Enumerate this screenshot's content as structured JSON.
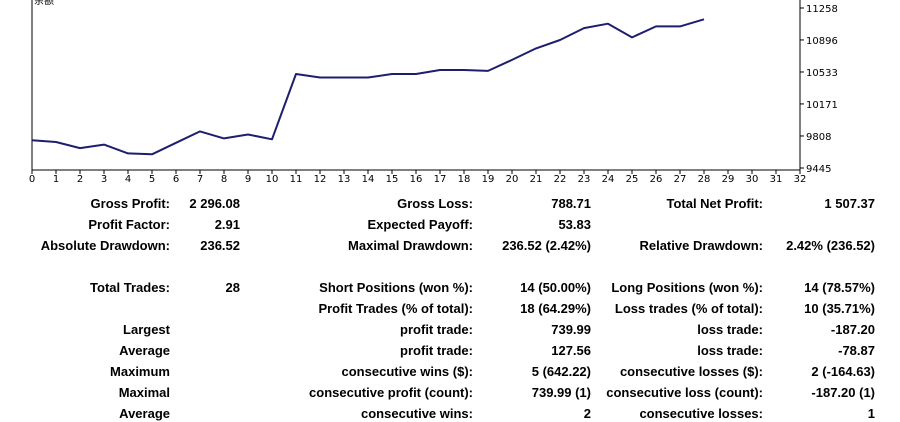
{
  "chart_data": {
    "type": "line",
    "title": "",
    "xlabel": "",
    "ylabel": "",
    "corner_label": "余额",
    "x_ticks": [
      "0",
      "1",
      "2",
      "3",
      "4",
      "5",
      "6",
      "7",
      "8",
      "9",
      "10",
      "11",
      "12",
      "13",
      "14",
      "15",
      "16",
      "17",
      "18",
      "19",
      "20",
      "21",
      "22",
      "23",
      "24",
      "25",
      "26",
      "27",
      "28",
      "29",
      "30",
      "31",
      "32"
    ],
    "y_ticks": [
      "11258",
      "10896",
      "10533",
      "10171",
      "9808",
      "9445"
    ],
    "xlim": [
      0,
      32
    ],
    "ylim": [
      9445,
      11258
    ],
    "grid": false,
    "series": [
      {
        "color": "#1e1e6e",
        "x": [
          0,
          1,
          2,
          3,
          4,
          5,
          6,
          7,
          8,
          9,
          10,
          11,
          12,
          13,
          14,
          15,
          16,
          17,
          18,
          19,
          20,
          21,
          22,
          23,
          24,
          25,
          26,
          27,
          28
        ],
        "y": [
          9760,
          9740,
          9670,
          9710,
          9610,
          9600,
          9730,
          9860,
          9780,
          9825,
          9770,
          10510,
          10470,
          10470,
          10470,
          10510,
          10510,
          10555,
          10555,
          10545,
          10670,
          10800,
          10895,
          11030,
          11080,
          10925,
          11050,
          11050,
          11130
        ]
      }
    ]
  },
  "stats": {
    "gross_profit_label": "Gross Profit:",
    "gross_profit_value": "2 296.08",
    "gross_loss_label": "Gross Loss:",
    "gross_loss_value": "788.71",
    "total_net_profit_label": "Total Net Profit:",
    "total_net_profit_value": "1 507.37",
    "profit_factor_label": "Profit Factor:",
    "profit_factor_value": "2.91",
    "expected_payoff_label": "Expected Payoff:",
    "expected_payoff_value": "53.83",
    "absolute_drawdown_label": "Absolute Drawdown:",
    "absolute_drawdown_value": "236.52",
    "maximal_drawdown_label": "Maximal Drawdown:",
    "maximal_drawdown_value": "236.52 (2.42%)",
    "relative_drawdown_label": "Relative Drawdown:",
    "relative_drawdown_value": "2.42% (236.52)",
    "total_trades_label": "Total Trades:",
    "total_trades_value": "28",
    "short_positions_label": "Short Positions (won %):",
    "short_positions_value": "14 (50.00%)",
    "long_positions_label": "Long Positions (won %):",
    "long_positions_value": "14 (78.57%)",
    "profit_trades_label": "Profit Trades (% of total):",
    "profit_trades_value": "18 (64.29%)",
    "loss_trades_label": "Loss trades (% of total):",
    "loss_trades_value": "10 (35.71%)",
    "largest_label": "Largest",
    "largest_profit_label": "profit trade:",
    "largest_profit_value": "739.99",
    "largest_loss_label": "loss trade:",
    "largest_loss_value": "-187.20",
    "average_label": "Average",
    "average_profit_label": "profit trade:",
    "average_profit_value": "127.56",
    "average_loss_label": "loss trade:",
    "average_loss_value": "-78.87",
    "maximum_label": "Maximum",
    "max_consec_wins_label": "consecutive wins ($):",
    "max_consec_wins_value": "5 (642.22)",
    "max_consec_losses_label": "consecutive losses ($):",
    "max_consec_losses_value": "2 (-164.63)",
    "maximal_label": "Maximal",
    "maximal_consec_profit_label": "consecutive profit (count):",
    "maximal_consec_profit_value": "739.99 (1)",
    "maximal_consec_loss_label": "consecutive loss (count):",
    "maximal_consec_loss_value": "-187.20 (1)",
    "average2_label": "Average",
    "avg_consec_wins_label": "consecutive wins:",
    "avg_consec_wins_value": "2",
    "avg_consec_losses_label": "consecutive losses:",
    "avg_consec_losses_value": "1"
  }
}
